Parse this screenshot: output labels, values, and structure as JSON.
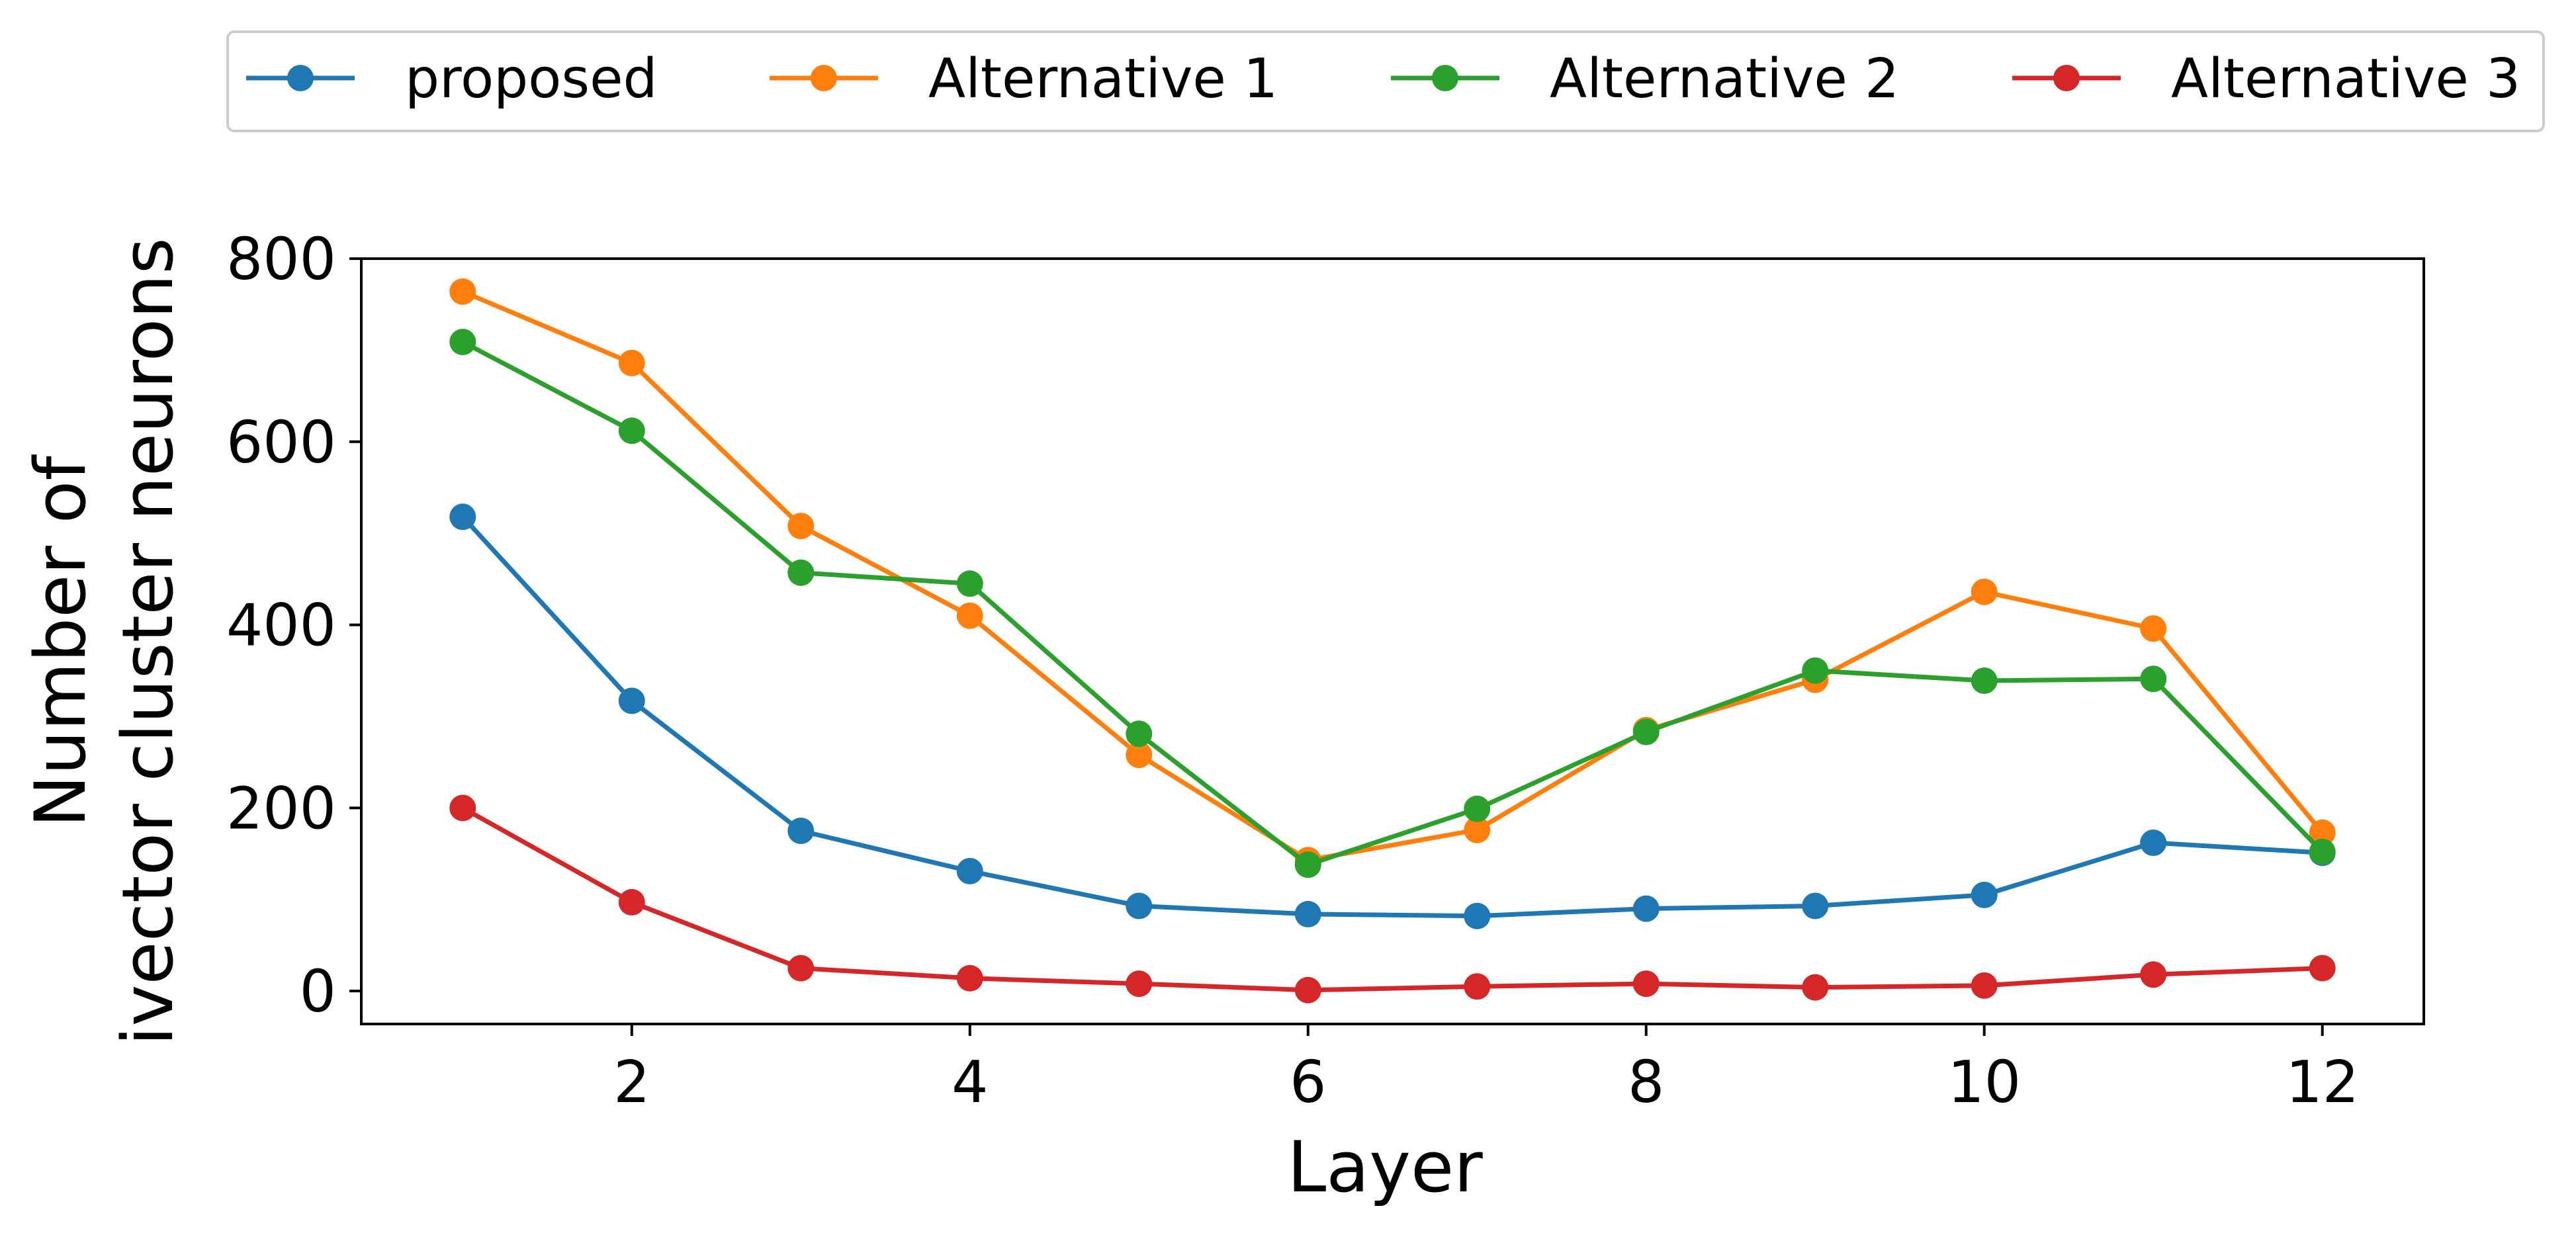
{
  "chart_data": {
    "type": "line",
    "title": "",
    "xlabel": "Layer",
    "ylabel_lines": [
      "Number of",
      "ivector cluster neurons"
    ],
    "x": [
      1,
      2,
      3,
      4,
      5,
      6,
      7,
      8,
      9,
      10,
      11,
      12
    ],
    "xlim": [
      0.4,
      12.6
    ],
    "ylim": [
      -36,
      800
    ],
    "xticks": [
      2,
      4,
      6,
      8,
      10,
      12
    ],
    "xtick_labels": [
      "2",
      "4",
      "6",
      "8",
      "10",
      "12"
    ],
    "yticks": [
      0,
      200,
      400,
      600,
      800
    ],
    "ytick_labels": [
      "0",
      "200",
      "400",
      "600",
      "800"
    ],
    "grid": false,
    "legend_placement": "top, above plot, 4 columns",
    "series": [
      {
        "name": "proposed",
        "color": "#1f77b4",
        "values": [
          518,
          317,
          175,
          131,
          93,
          84,
          82,
          90,
          93,
          105,
          162,
          151
        ]
      },
      {
        "name": "Alternative 1",
        "color": "#ff7f0e",
        "values": [
          764,
          686,
          508,
          410,
          258,
          143,
          176,
          285,
          340,
          436,
          396,
          173
        ]
      },
      {
        "name": "Alternative 2",
        "color": "#2ca02c",
        "values": [
          709,
          612,
          457,
          445,
          281,
          138,
          199,
          283,
          350,
          339,
          341,
          152
        ]
      },
      {
        "name": "Alternative 3",
        "color": "#d62728",
        "values": [
          200,
          97,
          25,
          14,
          8,
          1,
          5,
          8,
          4,
          6,
          18,
          25
        ]
      }
    ]
  }
}
